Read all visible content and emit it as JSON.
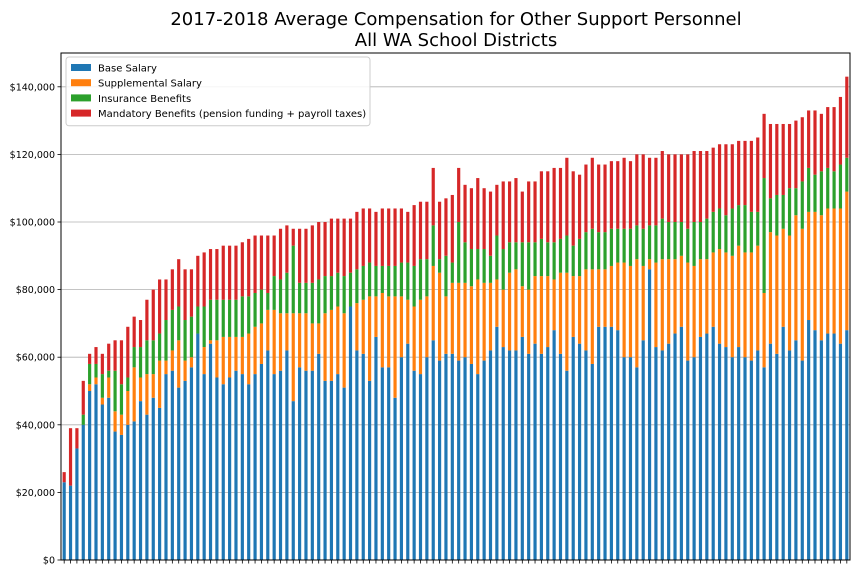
{
  "chart_data": {
    "type": "bar",
    "stacked": true,
    "title": "2017-2018 Average Compensation for Other Support Personnel",
    "subtitle": "All WA School Districts",
    "xlabel": "",
    "ylabel": "",
    "ylim": [
      0,
      150000
    ],
    "yticks": [
      0,
      20000,
      40000,
      60000,
      80000,
      100000,
      120000,
      140000
    ],
    "ytick_labels": [
      "$0",
      "$20,000",
      "$40,000",
      "$60,000",
      "$80,000",
      "$100,000",
      "$120,000",
      "$140,000"
    ],
    "grid": "horizontal",
    "legend_position": "top-left",
    "series": [
      {
        "name": "Base Salary",
        "color": "#1f77b4",
        "values": [
          23000,
          22000,
          33000,
          40000,
          50000,
          52000,
          46000,
          48000,
          38000,
          37000,
          40000,
          41000,
          47000,
          43000,
          48000,
          45000,
          55000,
          56000,
          51000,
          53000,
          57000,
          67000,
          55000,
          64000,
          54000,
          52000,
          54000,
          56000,
          55000,
          52000,
          55000,
          58000,
          62000,
          55000,
          56000,
          62000,
          47000,
          57000,
          56000,
          56000,
          61000,
          53000,
          53000,
          55000,
          51000,
          75000,
          62000,
          61000,
          53000,
          66000,
          57000,
          57000,
          48000,
          60000,
          64000,
          56000,
          55000,
          60000,
          65000,
          59000,
          61000,
          61000,
          59000,
          60000,
          58000,
          55000,
          59000,
          62000,
          69000,
          63000,
          62000,
          62000,
          66000,
          61000,
          64000,
          61000,
          63000,
          68000,
          61000,
          56000,
          66000,
          64000,
          62000,
          58000,
          69000,
          69000,
          69000,
          68000,
          60000,
          60000,
          57000,
          65000,
          86000,
          63000,
          62000,
          64000,
          67000,
          69000,
          59000,
          60000,
          66000,
          67000,
          69000,
          64000,
          63000,
          60000,
          63000,
          60000,
          59000,
          62000,
          57000,
          64000,
          61000,
          69000,
          62000,
          65000,
          59000,
          71000,
          68000,
          65000,
          67000,
          67000,
          64000,
          68000
        ]
      },
      {
        "name": "Supplemental Salary",
        "color": "#ff7f0e",
        "values": [
          0,
          0,
          0,
          0,
          2000,
          2000,
          2000,
          6000,
          6000,
          6000,
          10000,
          16000,
          7000,
          12000,
          7000,
          14000,
          4000,
          6000,
          14000,
          6000,
          3000,
          0,
          8000,
          1000,
          11000,
          14000,
          12000,
          10000,
          11000,
          15000,
          14000,
          12000,
          12000,
          19000,
          17000,
          11000,
          26000,
          16000,
          17000,
          14000,
          9000,
          20000,
          21000,
          20000,
          22000,
          0,
          14000,
          16000,
          25000,
          12000,
          22000,
          21000,
          30000,
          18000,
          13000,
          19000,
          22000,
          18000,
          22000,
          26000,
          17000,
          21000,
          23000,
          22000,
          23000,
          28000,
          23000,
          20000,
          14000,
          17000,
          23000,
          24000,
          15000,
          19000,
          20000,
          23000,
          21000,
          15000,
          24000,
          29000,
          18000,
          20000,
          24000,
          28000,
          17000,
          17000,
          18000,
          20000,
          28000,
          27000,
          32000,
          22000,
          3000,
          25000,
          27000,
          25000,
          22000,
          21000,
          29000,
          27000,
          23000,
          22000,
          22000,
          28000,
          28000,
          30000,
          30000,
          31000,
          32000,
          31000,
          22000,
          33000,
          35000,
          29000,
          34000,
          37000,
          39000,
          32000,
          35000,
          37000,
          37000,
          37000,
          40000,
          41000
        ]
      },
      {
        "name": "Insurance Benefits",
        "color": "#2ca02c",
        "values": [
          0,
          0,
          0,
          3000,
          6000,
          4000,
          7000,
          2000,
          12000,
          9000,
          4000,
          6000,
          9000,
          10000,
          10000,
          8000,
          12000,
          12000,
          10000,
          12000,
          12000,
          8000,
          12000,
          12000,
          12000,
          11000,
          11000,
          11000,
          12000,
          11000,
          10000,
          10000,
          5000,
          10000,
          10000,
          12000,
          20000,
          9000,
          9000,
          12000,
          13000,
          11000,
          10000,
          10000,
          11000,
          10000,
          10000,
          10000,
          10000,
          9000,
          8000,
          9000,
          9000,
          10000,
          11000,
          12000,
          12000,
          11000,
          12000,
          4000,
          12000,
          6000,
          18000,
          12000,
          11000,
          9000,
          10000,
          8000,
          13000,
          12000,
          9000,
          8000,
          13000,
          14000,
          10000,
          11000,
          10000,
          11000,
          10000,
          11000,
          9000,
          11000,
          11000,
          12000,
          11000,
          11000,
          11000,
          10000,
          10000,
          11000,
          10000,
          11000,
          10000,
          11000,
          12000,
          11000,
          11000,
          10000,
          10000,
          13000,
          11000,
          12000,
          12000,
          12000,
          11000,
          14000,
          12000,
          14000,
          12000,
          10000,
          34000,
          10000,
          12000,
          10000,
          14000,
          8000,
          14000,
          13000,
          11000,
          13000,
          12000,
          11000,
          13000,
          10000
        ]
      },
      {
        "name": "Mandatory Benefits (pension funding + payroll taxes)",
        "color": "#d62728",
        "values": [
          3000,
          17000,
          6000,
          10000,
          3000,
          5000,
          6000,
          8000,
          9000,
          13000,
          15000,
          9000,
          8000,
          12000,
          15000,
          16000,
          12000,
          12000,
          14000,
          15000,
          14000,
          15000,
          16000,
          15000,
          15000,
          16000,
          16000,
          16000,
          16000,
          17000,
          17000,
          16000,
          17000,
          12000,
          15000,
          14000,
          5000,
          16000,
          16000,
          17000,
          17000,
          16000,
          17000,
          16000,
          17000,
          16000,
          17000,
          17000,
          16000,
          16000,
          17000,
          17000,
          17000,
          16000,
          15000,
          18000,
          17000,
          17000,
          17000,
          17000,
          17000,
          20000,
          16000,
          17000,
          18000,
          21000,
          18000,
          19000,
          15000,
          20000,
          18000,
          19000,
          15000,
          18000,
          18000,
          20000,
          21000,
          22000,
          21000,
          23000,
          22000,
          19000,
          20000,
          21000,
          20000,
          20000,
          20000,
          20000,
          21000,
          20000,
          21000,
          22000,
          20000,
          20000,
          20000,
          20000,
          20000,
          20000,
          22000,
          21000,
          21000,
          20000,
          19000,
          19000,
          21000,
          19000,
          19000,
          19000,
          21000,
          22000,
          19000,
          22000,
          21000,
          21000,
          19000,
          20000,
          19000,
          17000,
          19000,
          17000,
          18000,
          19000,
          20000,
          24000
        ]
      }
    ]
  }
}
